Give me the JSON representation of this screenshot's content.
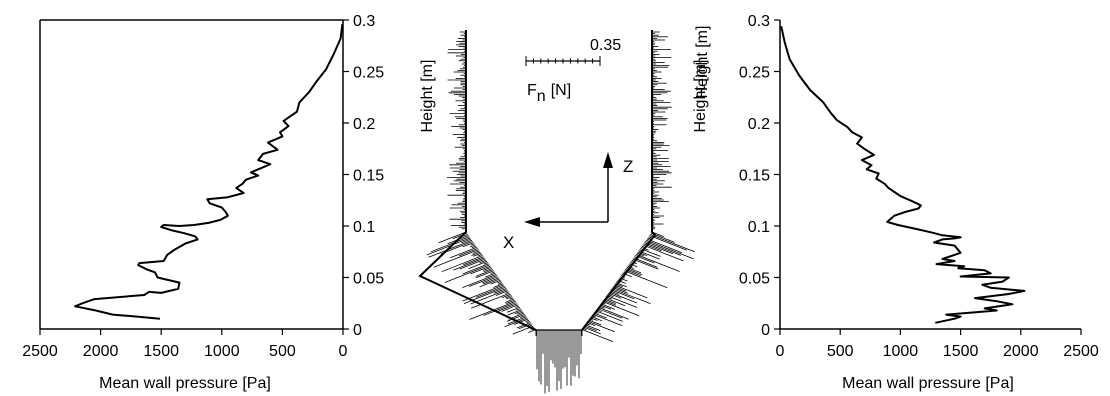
{
  "chart_data": [
    {
      "type": "line",
      "panel": "left",
      "xlabel": "Mean wall pressure [Pa]",
      "ylabel": "",
      "xlim": [
        0,
        2500
      ],
      "ylim": [
        0,
        0.3
      ],
      "x_reversed": true,
      "y_axis_side": "right",
      "xticks": [
        "2500",
        "2000",
        "1500",
        "1000",
        "500",
        "0"
      ],
      "yticks": [
        "0",
        "0.05",
        "0.1",
        "0.15",
        "0.2",
        "0.25",
        "0.3"
      ],
      "series": [
        {
          "x": [
            1510,
            1700,
            1900,
            2040,
            2210,
            2150,
            2050,
            1850,
            1640,
            1600,
            1500,
            1360,
            1350,
            1420,
            1530,
            1550,
            1620,
            1690,
            1680,
            1480,
            1450,
            1390,
            1300,
            1200,
            1220,
            1310,
            1420,
            1500,
            1480,
            1350,
            1230,
            1110,
            1010,
            950,
            970,
            1000,
            1100,
            1120,
            950,
            820,
            880,
            830,
            800,
            700,
            760,
            680,
            600,
            700,
            660,
            540,
            620,
            500,
            520,
            450,
            490,
            380,
            360,
            280,
            220,
            140,
            80,
            20,
            5
          ],
          "y": [
            0.01,
            0.012,
            0.014,
            0.018,
            0.022,
            0.025,
            0.029,
            0.031,
            0.033,
            0.036,
            0.035,
            0.039,
            0.045,
            0.047,
            0.05,
            0.055,
            0.058,
            0.062,
            0.064,
            0.066,
            0.072,
            0.077,
            0.083,
            0.087,
            0.09,
            0.093,
            0.096,
            0.099,
            0.101,
            0.1,
            0.101,
            0.103,
            0.106,
            0.11,
            0.114,
            0.118,
            0.122,
            0.126,
            0.128,
            0.132,
            0.137,
            0.141,
            0.145,
            0.149,
            0.152,
            0.156,
            0.16,
            0.164,
            0.17,
            0.174,
            0.181,
            0.187,
            0.191,
            0.197,
            0.202,
            0.211,
            0.22,
            0.23,
            0.24,
            0.252,
            0.266,
            0.282,
            0.296
          ]
        }
      ]
    },
    {
      "type": "line",
      "panel": "right",
      "xlabel": "Mean wall pressure [Pa]",
      "ylabel": "Height [m]",
      "xlim": [
        0,
        2500
      ],
      "ylim": [
        0,
        0.3
      ],
      "x_reversed": false,
      "y_axis_side": "left",
      "xticks": [
        "0",
        "500",
        "1000",
        "1500",
        "2000",
        "2500"
      ],
      "yticks": [
        "0",
        "0.05",
        "0.1",
        "0.15",
        "0.2",
        "0.25",
        "0.3"
      ],
      "series": [
        {
          "x": [
            1290,
            1450,
            1500,
            1380,
            1600,
            1800,
            1700,
            1930,
            1800,
            1620,
            1900,
            2030,
            1750,
            1680,
            1850,
            1900,
            1500,
            1750,
            1700,
            1480,
            1530,
            1300,
            1450,
            1350,
            1500,
            1450,
            1280,
            1350,
            1450,
            1500,
            1350,
            1250,
            1100,
            980,
            890,
            950,
            1050,
            1150,
            1170,
            1100,
            1000,
            950,
            900,
            870,
            800,
            820,
            720,
            760,
            680,
            780,
            700,
            640,
            680,
            600,
            560,
            470,
            420,
            360,
            250,
            160,
            80,
            40,
            10
          ],
          "y": [
            0.006,
            0.01,
            0.012,
            0.014,
            0.016,
            0.018,
            0.02,
            0.024,
            0.027,
            0.03,
            0.034,
            0.037,
            0.04,
            0.043,
            0.046,
            0.05,
            0.051,
            0.054,
            0.057,
            0.059,
            0.061,
            0.063,
            0.066,
            0.068,
            0.074,
            0.081,
            0.084,
            0.087,
            0.088,
            0.089,
            0.091,
            0.094,
            0.098,
            0.101,
            0.104,
            0.11,
            0.114,
            0.117,
            0.12,
            0.124,
            0.129,
            0.133,
            0.137,
            0.141,
            0.146,
            0.151,
            0.155,
            0.159,
            0.164,
            0.169,
            0.175,
            0.18,
            0.186,
            0.191,
            0.196,
            0.203,
            0.21,
            0.22,
            0.232,
            0.246,
            0.262,
            0.278,
            0.294
          ]
        }
      ]
    }
  ],
  "diagram": {
    "height_label_left": "Height [m]",
    "height_label_right": "Height [m]",
    "scale_value": "0.35",
    "force_label_main": "F",
    "force_label_sub": "n",
    "force_label_unit": "[N]",
    "axis_z": "Z",
    "axis_x": "X"
  }
}
